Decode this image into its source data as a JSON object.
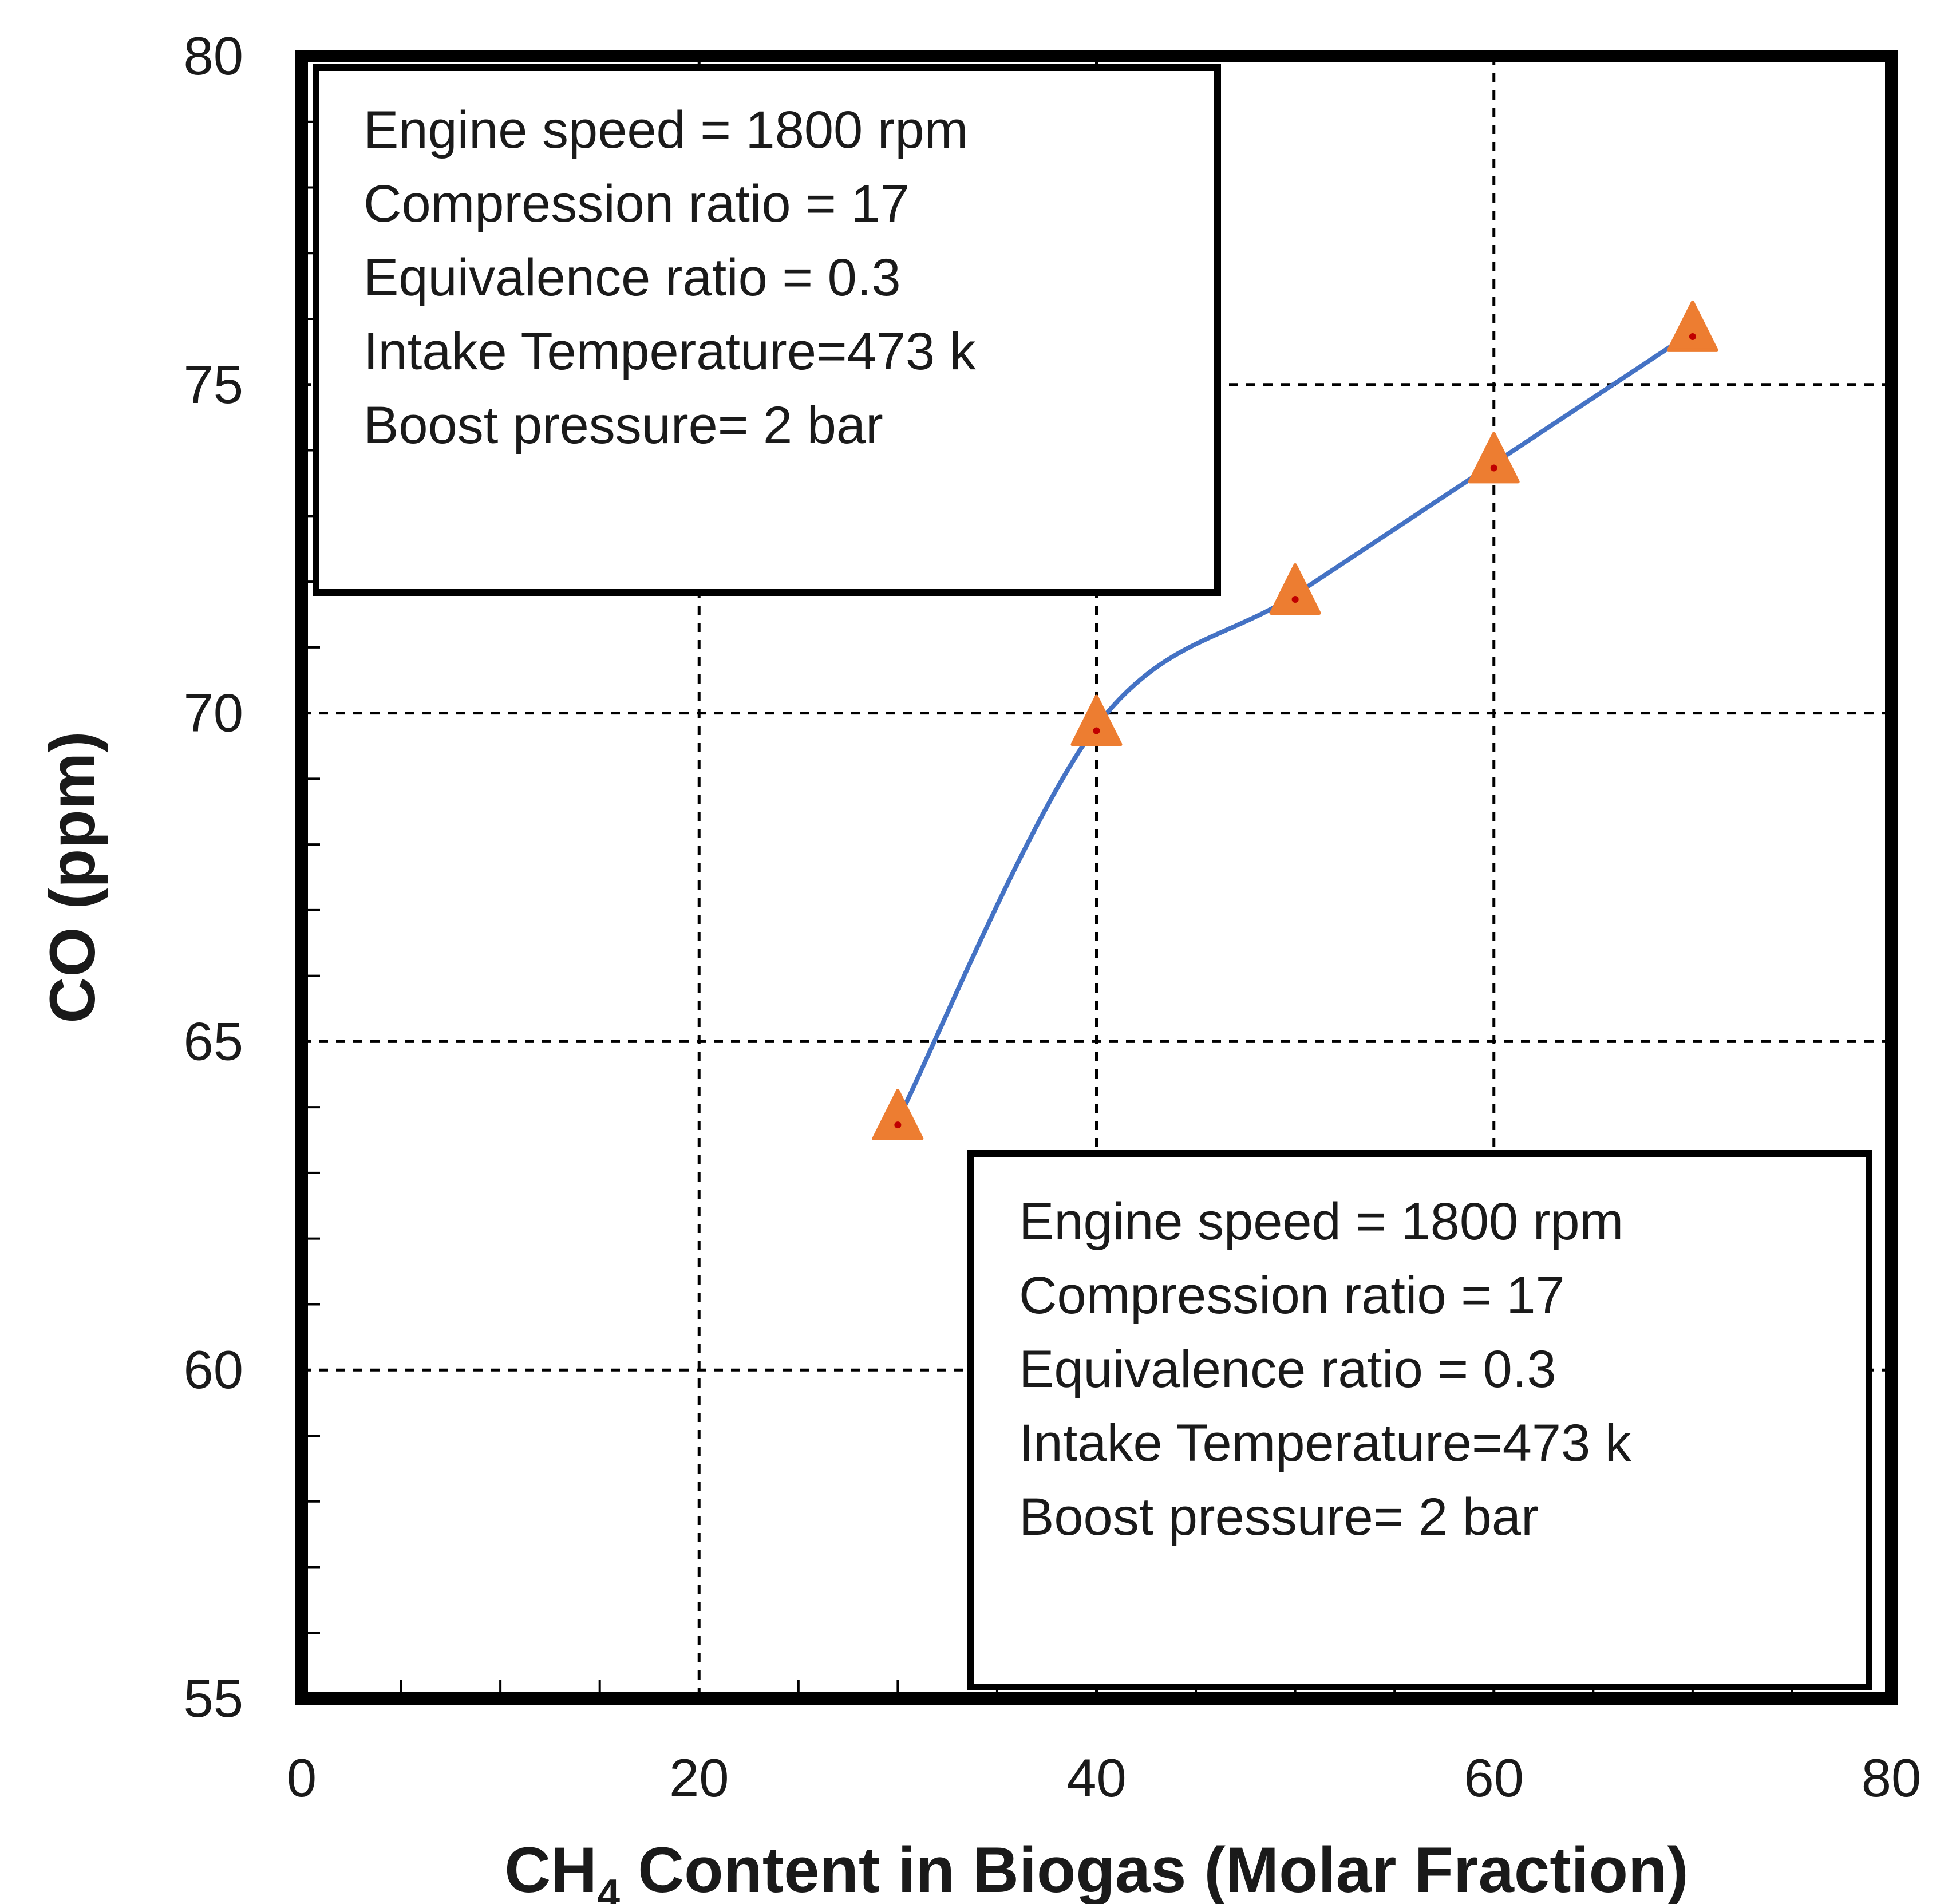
{
  "chart_data": {
    "type": "line",
    "xlabel": "CH4 Content in Biogas (Molar Fraction)",
    "xlabel_main": "CH",
    "xlabel_subscript": "4",
    "xlabel_rest": " Content in Biogas (Molar Fraction)",
    "ylabel": "CO (ppm)",
    "xlim": [
      0,
      80
    ],
    "ylim": [
      55,
      80
    ],
    "x_ticks": [
      0,
      20,
      40,
      60,
      80
    ],
    "y_ticks": [
      55,
      60,
      65,
      70,
      75,
      80
    ],
    "grid": true,
    "series": [
      {
        "x": [
          30,
          40,
          50,
          60,
          70
        ],
        "y": [
          63.8,
          69.8,
          71.8,
          73.8,
          75.8
        ],
        "line_color": "#4472C4",
        "marker": "triangle",
        "marker_color": "#ED7D31"
      }
    ],
    "annotations": [
      {
        "position": "top-left",
        "lines": [
          "Engine speed = 1800 rpm",
          "Compression ratio = 17",
          "Equivalence ratio = 0.3",
          "Intake Temperature=473 k",
          "Boost pressure= 2 bar"
        ]
      },
      {
        "position": "bottom-right",
        "lines": [
          "Engine speed = 1800 rpm",
          "Compression ratio = 17",
          "Equivalence ratio = 0.3",
          "Intake Temperature=473 k",
          "Boost pressure= 2 bar"
        ]
      }
    ]
  }
}
